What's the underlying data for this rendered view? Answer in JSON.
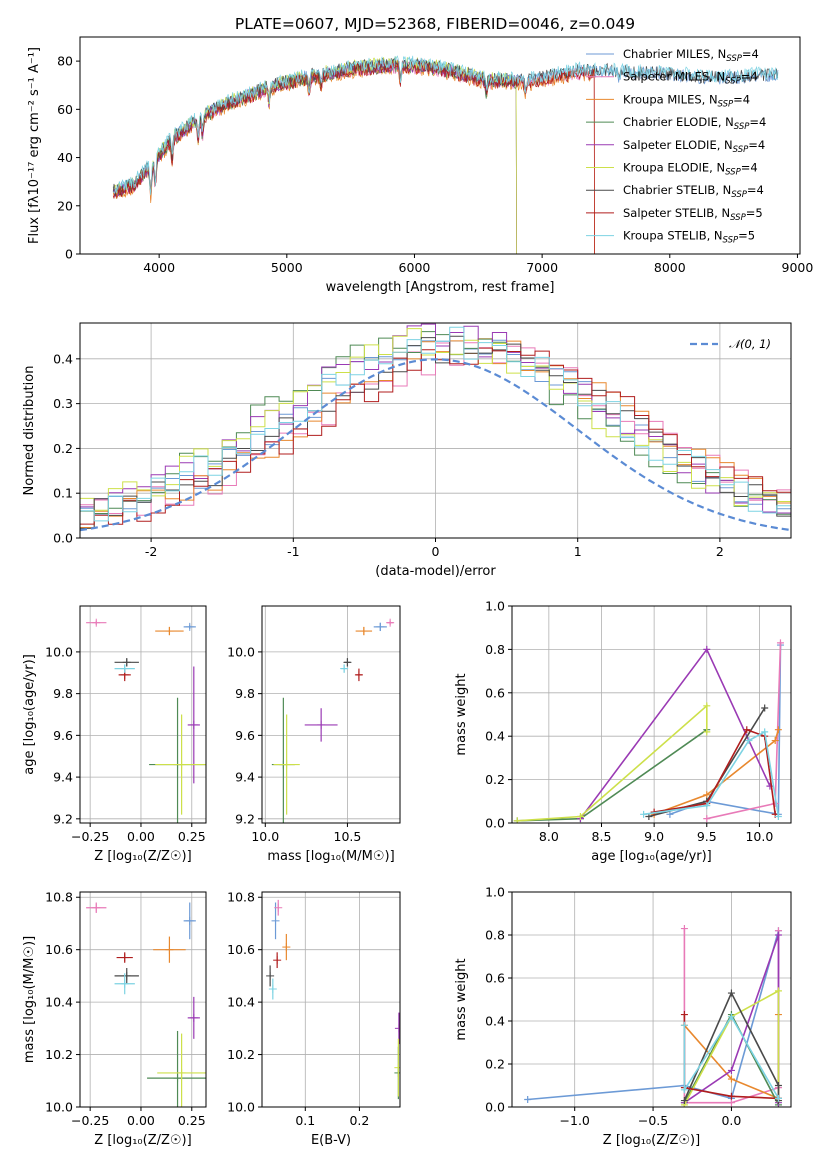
{
  "page": {
    "title": "PLATE=0607, MJD=52368, FIBERID=0046, z=0.049"
  },
  "colors": {
    "Chabrier MILES": "#6c9ad6",
    "Salpeter MILES": "#e87ab8",
    "Kroupa MILES": "#e8882e",
    "Chabrier ELODIE": "#4f8a55",
    "Salpeter ELODIE": "#9a3ab4",
    "Kroupa ELODIE": "#cde04a",
    "Chabrier STELIB": "#4a4a4a",
    "Salpeter STELIB": "#b01e1e",
    "Kroupa STELIB": "#7dd3e3"
  },
  "chart_data": [
    {
      "id": "spectrum",
      "type": "line",
      "xlabel": "wavelength [Angstrom, rest frame]",
      "ylabel": "Flux [fλ10⁻¹⁷ erg cm⁻² s⁻¹ A⁻¹]",
      "xlim": [
        3380,
        9020
      ],
      "ylim": [
        0,
        90
      ],
      "xticks": [
        4000,
        5000,
        6000,
        7000,
        8000,
        9000
      ],
      "yticks": [
        0,
        20,
        40,
        60,
        80
      ],
      "grid": false,
      "legend_position": "top-right",
      "continuum": {
        "x": [
          3640,
          3800,
          3950,
          4100,
          4300,
          4500,
          4700,
          4900,
          5100,
          5300,
          5500,
          5700,
          5900,
          6100,
          6300,
          6500,
          6700,
          6900,
          7100,
          7300,
          7500,
          7700,
          7900,
          8100,
          8300,
          8500,
          8700,
          8850
        ],
        "y": [
          26,
          29,
          38,
          48,
          56,
          62,
          66,
          70,
          73,
          75,
          77,
          78,
          79,
          78,
          76,
          73,
          72,
          72,
          74,
          76,
          76,
          75,
          75,
          74,
          73,
          73,
          74,
          74
        ]
      },
      "absorptions": [
        {
          "x": 3934,
          "depth": 12
        },
        {
          "x": 3969,
          "depth": 10
        },
        {
          "x": 4102,
          "depth": 8
        },
        {
          "x": 4305,
          "depth": 9
        },
        {
          "x": 4340,
          "depth": 7
        },
        {
          "x": 4861,
          "depth": 6
        },
        {
          "x": 5175,
          "depth": 6
        },
        {
          "x": 5270,
          "depth": 4
        },
        {
          "x": 5890,
          "depth": 7
        },
        {
          "x": 6563,
          "depth": 5
        },
        {
          "x": 6870,
          "depth": 4
        },
        {
          "x": 7600,
          "depth": 4
        }
      ],
      "series": [
        {
          "name": "Chabrier MILES",
          "label": [
            "Chabrier MILES, N",
            "SSP",
            "=4"
          ],
          "cutoff": null,
          "offset": 0.0
        },
        {
          "name": "Salpeter MILES",
          "label": [
            "Salpeter MILES, N",
            "SSP",
            "=4"
          ],
          "cutoff": 7410,
          "offset": -1.2
        },
        {
          "name": "Kroupa MILES",
          "label": [
            "Kroupa MILES, N",
            "SSP",
            "=4"
          ],
          "cutoff": 7410,
          "offset": -1.6
        },
        {
          "name": "Chabrier ELODIE",
          "label": [
            "Chabrier ELODIE, N",
            "SSP",
            "=4"
          ],
          "cutoff": 6800,
          "offset": -0.8
        },
        {
          "name": "Salpeter ELODIE",
          "label": [
            "Salpeter ELODIE, N",
            "SSP",
            "=4"
          ],
          "cutoff": 6800,
          "offset": -0.4
        },
        {
          "name": "Kroupa ELODIE",
          "label": [
            "Kroupa ELODIE, N",
            "SSP",
            "=4"
          ],
          "cutoff": 6800,
          "offset": 0.6
        },
        {
          "name": "Chabrier STELIB",
          "label": [
            "Chabrier STELIB, N",
            "SSP",
            "=4"
          ],
          "cutoff": null,
          "offset": 0.3
        },
        {
          "name": "Salpeter STELIB",
          "label": [
            "Salpeter STELIB, N",
            "SSP",
            "=5"
          ],
          "cutoff": 7410,
          "offset": -1.0
        },
        {
          "name": "Kroupa STELIB",
          "label": [
            "Kroupa STELIB, N",
            "SSP",
            "=5"
          ],
          "cutoff": null,
          "offset": 0.9
        }
      ]
    },
    {
      "id": "residuals",
      "type": "histogram",
      "xlabel": "(data-model)/error",
      "ylabel": "Normed distribution",
      "xlim": [
        -2.5,
        2.5
      ],
      "ylim": [
        0,
        0.48
      ],
      "xticks": [
        -2,
        -1,
        0,
        1,
        2
      ],
      "yticks": [
        0.0,
        0.1,
        0.2,
        0.3,
        0.4
      ],
      "grid": true,
      "bin_width": 0.1,
      "normal_curve": {
        "label": "𝒩(0, 1)",
        "mean": 0,
        "sigma": 1,
        "color": "#5b8bd4"
      },
      "series_shift": [
        0.15,
        0.3,
        0.25,
        -0.05,
        0.05,
        0.0,
        0.2,
        0.35,
        0.1
      ],
      "series_scale": [
        1.0,
        0.95,
        0.98,
        1.02,
        1.03,
        1.0,
        0.97,
        0.96,
        1.0
      ]
    },
    {
      "id": "age-vs-Z",
      "type": "scatter",
      "xlabel": "Z [log₁₀(Z/Z☉)]",
      "ylabel": "age  [log₁₀(age/yr)]",
      "xlim": [
        -0.3,
        0.32
      ],
      "ylim": [
        9.18,
        10.22
      ],
      "xticks": [
        -0.25,
        0.0,
        0.25
      ],
      "xtick_labels": [
        "−0.25",
        "0.00",
        "0.25"
      ],
      "yticks": [
        9.2,
        9.4,
        9.6,
        9.8,
        10.0
      ],
      "grid": true,
      "points": [
        {
          "series": "Chabrier MILES",
          "x": 0.24,
          "y": 10.12,
          "xerr": 0.03,
          "yerr": 0.01
        },
        {
          "series": "Salpeter MILES",
          "x": -0.22,
          "y": 10.14,
          "xerr": 0.05,
          "yerr": 0.01
        },
        {
          "series": "Kroupa MILES",
          "x": 0.14,
          "y": 10.1,
          "xerr": 0.07,
          "yerr": 0.02
        },
        {
          "series": "Chabrier ELODIE",
          "x": 0.18,
          "y": 9.46,
          "xerr": 0.14,
          "yerr": 0.32
        },
        {
          "series": "Salpeter ELODIE",
          "x": 0.26,
          "y": 9.65,
          "xerr": 0.03,
          "yerr": 0.28
        },
        {
          "series": "Kroupa ELODIE",
          "x": 0.2,
          "y": 9.46,
          "xerr": 0.13,
          "yerr": 0.24
        },
        {
          "series": "Chabrier STELIB",
          "x": -0.07,
          "y": 9.95,
          "xerr": 0.06,
          "yerr": 0.02
        },
        {
          "series": "Salpeter STELIB",
          "x": -0.08,
          "y": 9.89,
          "xerr": 0.03,
          "yerr": 0.03
        },
        {
          "series": "Kroupa STELIB",
          "x": -0.08,
          "y": 9.92,
          "xerr": 0.05,
          "yerr": 0.02
        }
      ]
    },
    {
      "id": "age-vs-mass",
      "type": "scatter",
      "xlabel": "mass [log₁₀(M/M☉)]",
      "ylabel": "",
      "xlim": [
        9.98,
        10.82
      ],
      "ylim": [
        9.18,
        10.22
      ],
      "xticks": [
        10.0,
        10.5
      ],
      "xtick_labels": [
        "10.0",
        "10.5"
      ],
      "yticks": [
        9.2,
        9.4,
        9.6,
        9.8,
        10.0
      ],
      "grid": true,
      "points": [
        {
          "series": "Chabrier MILES",
          "x": 10.7,
          "y": 10.12,
          "xerr": 0.04,
          "yerr": 0.02
        },
        {
          "series": "Salpeter MILES",
          "x": 10.76,
          "y": 10.14,
          "xerr": 0.02,
          "yerr": 0.01
        },
        {
          "series": "Kroupa MILES",
          "x": 10.6,
          "y": 10.1,
          "xerr": 0.05,
          "yerr": 0.02
        },
        {
          "series": "Chabrier ELODIE",
          "x": 10.11,
          "y": 9.46,
          "xerr": 0.07,
          "yerr": 0.32
        },
        {
          "series": "Salpeter ELODIE",
          "x": 10.34,
          "y": 9.65,
          "xerr": 0.1,
          "yerr": 0.08
        },
        {
          "series": "Kroupa ELODIE",
          "x": 10.13,
          "y": 9.46,
          "xerr": 0.08,
          "yerr": 0.24
        },
        {
          "series": "Chabrier STELIB",
          "x": 10.5,
          "y": 9.95,
          "xerr": 0.02,
          "yerr": 0.02
        },
        {
          "series": "Salpeter STELIB",
          "x": 10.57,
          "y": 9.89,
          "xerr": 0.02,
          "yerr": 0.03
        },
        {
          "series": "Kroupa STELIB",
          "x": 10.48,
          "y": 9.92,
          "xerr": 0.02,
          "yerr": 0.02
        }
      ]
    },
    {
      "id": "weight-vs-age",
      "type": "line",
      "xlabel": "age  [log₁₀(age/yr)]",
      "ylabel": "mass weight",
      "xlim": [
        7.65,
        10.3
      ],
      "ylim": [
        0,
        1
      ],
      "xticks": [
        8.0,
        8.5,
        9.0,
        9.5,
        10.0
      ],
      "xtick_labels": [
        "8.0",
        "8.5",
        "9.0",
        "9.5",
        "10.0"
      ],
      "yticks": [
        0.0,
        0.2,
        0.4,
        0.6,
        0.8,
        1.0
      ],
      "grid": true,
      "series": [
        {
          "name": "Chabrier MILES",
          "x": [
            9.15,
            9.5,
            10.18,
            10.2
          ],
          "y": [
            0.04,
            0.1,
            0.04,
            0.82
          ]
        },
        {
          "name": "Salpeter MILES",
          "x": [
            9.5,
            10.15,
            10.2
          ],
          "y": [
            0.02,
            0.09,
            0.83
          ]
        },
        {
          "name": "Kroupa MILES",
          "x": [
            9.0,
            9.5,
            10.15,
            10.18
          ],
          "y": [
            0.04,
            0.13,
            0.38,
            0.43
          ]
        },
        {
          "name": "Chabrier ELODIE",
          "x": [
            7.7,
            8.3,
            9.5
          ],
          "y": [
            0.01,
            0.02,
            0.43
          ]
        },
        {
          "name": "Salpeter ELODIE",
          "x": [
            8.3,
            9.5,
            10.1
          ],
          "y": [
            0.02,
            0.8,
            0.17
          ]
        },
        {
          "name": "Kroupa ELODIE",
          "x": [
            7.7,
            8.3,
            9.5,
            9.5
          ],
          "y": [
            0.01,
            0.03,
            0.54,
            0.42
          ]
        },
        {
          "name": "Chabrier STELIB",
          "x": [
            8.95,
            9.5,
            10.05
          ],
          "y": [
            0.03,
            0.1,
            0.53
          ]
        },
        {
          "name": "Salpeter STELIB",
          "x": [
            9.0,
            9.5,
            9.88,
            10.05,
            10.15
          ],
          "y": [
            0.05,
            0.09,
            0.43,
            0.4,
            0.04
          ]
        },
        {
          "name": "Kroupa STELIB",
          "x": [
            8.9,
            9.5,
            9.9,
            10.05,
            10.18
          ],
          "y": [
            0.04,
            0.08,
            0.38,
            0.42,
            0.03
          ]
        }
      ]
    },
    {
      "id": "mass-vs-Z",
      "type": "scatter",
      "xlabel": "Z [log₁₀(Z/Z☉)]",
      "ylabel": "mass [log₁₀(M/M☉)]",
      "xlim": [
        -0.3,
        0.32
      ],
      "ylim": [
        10.0,
        10.82
      ],
      "xticks": [
        -0.25,
        0.0,
        0.25
      ],
      "xtick_labels": [
        "−0.25",
        "0.00",
        "0.25"
      ],
      "yticks": [
        10.0,
        10.2,
        10.4,
        10.6,
        10.8
      ],
      "grid": true,
      "points": [
        {
          "series": "Chabrier MILES",
          "x": 0.24,
          "y": 10.71,
          "xerr": 0.03,
          "yerr": 0.07
        },
        {
          "series": "Salpeter MILES",
          "x": -0.22,
          "y": 10.76,
          "xerr": 0.05,
          "yerr": 0.02
        },
        {
          "series": "Kroupa MILES",
          "x": 0.14,
          "y": 10.6,
          "xerr": 0.08,
          "yerr": 0.05
        },
        {
          "series": "Chabrier ELODIE",
          "x": 0.18,
          "y": 10.11,
          "xerr": 0.15,
          "yerr": 0.18
        },
        {
          "series": "Salpeter ELODIE",
          "x": 0.26,
          "y": 10.34,
          "xerr": 0.03,
          "yerr": 0.08
        },
        {
          "series": "Kroupa ELODIE",
          "x": 0.2,
          "y": 10.13,
          "xerr": 0.12,
          "yerr": 0.15
        },
        {
          "series": "Chabrier STELIB",
          "x": -0.07,
          "y": 10.5,
          "xerr": 0.06,
          "yerr": 0.03
        },
        {
          "series": "Salpeter STELIB",
          "x": -0.08,
          "y": 10.57,
          "xerr": 0.04,
          "yerr": 0.02
        },
        {
          "series": "Kroupa STELIB",
          "x": -0.08,
          "y": 10.47,
          "xerr": 0.05,
          "yerr": 0.04
        }
      ]
    },
    {
      "id": "mass-vs-EBV",
      "type": "scatter",
      "xlabel": "E(B-V)",
      "ylabel": "",
      "xlim": [
        0.02,
        0.275
      ],
      "ylim": [
        10.0,
        10.82
      ],
      "xticks": [
        0.1,
        0.2
      ],
      "xtick_labels": [
        "0.1",
        "0.2"
      ],
      "yticks": [
        10.0,
        10.2,
        10.4,
        10.6,
        10.8
      ],
      "grid": true,
      "points": [
        {
          "series": "Chabrier MILES",
          "x": 0.045,
          "y": 10.71,
          "xerr": 0,
          "yerr": 0.07
        },
        {
          "series": "Salpeter MILES",
          "x": 0.05,
          "y": 10.76,
          "xerr": 0,
          "yerr": 0.03
        },
        {
          "series": "Kroupa MILES",
          "x": 0.065,
          "y": 10.61,
          "xerr": 0,
          "yerr": 0.05
        },
        {
          "series": "Chabrier ELODIE",
          "x": 0.272,
          "y": 10.13,
          "xerr": 0,
          "yerr": 0.1
        },
        {
          "series": "Salpeter ELODIE",
          "x": 0.273,
          "y": 10.3,
          "xerr": 0,
          "yerr": 0.06
        },
        {
          "series": "Kroupa ELODIE",
          "x": 0.272,
          "y": 10.15,
          "xerr": 0,
          "yerr": 0.11
        },
        {
          "series": "Chabrier STELIB",
          "x": 0.035,
          "y": 10.5,
          "xerr": 0,
          "yerr": 0.04
        },
        {
          "series": "Salpeter STELIB",
          "x": 0.048,
          "y": 10.56,
          "xerr": 0,
          "yerr": 0.03
        },
        {
          "series": "Kroupa STELIB",
          "x": 0.04,
          "y": 10.45,
          "xerr": 0,
          "yerr": 0.04
        }
      ]
    },
    {
      "id": "weight-vs-Z",
      "type": "line",
      "xlabel": "Z [log₁₀(Z/Z☉)]",
      "ylabel": "mass weight",
      "xlim": [
        -1.4,
        0.38
      ],
      "ylim": [
        0,
        1
      ],
      "xticks": [
        -1.0,
        -0.5,
        0.0
      ],
      "xtick_labels": [
        "−1.0",
        "−0.5",
        "0.0"
      ],
      "yticks": [
        0.0,
        0.2,
        0.4,
        0.6,
        0.8,
        1.0
      ],
      "grid": true,
      "series": [
        {
          "name": "Chabrier MILES",
          "x": [
            -1.3,
            -0.3,
            0.0,
            0.3,
            0.3
          ],
          "y": [
            0.035,
            0.1,
            0.04,
            0.82,
            0.04
          ]
        },
        {
          "name": "Salpeter MILES",
          "x": [
            -0.3,
            -0.3,
            0.0,
            0.3,
            0.3
          ],
          "y": [
            0.83,
            0.02,
            0.02,
            0.09,
            0.82
          ]
        },
        {
          "name": "Kroupa MILES",
          "x": [
            -0.3,
            0.0,
            0.3,
            0.3
          ],
          "y": [
            0.38,
            0.13,
            0.04,
            0.43
          ]
        },
        {
          "name": "Chabrier ELODIE",
          "x": [
            -0.3,
            0.0,
            0.3
          ],
          "y": [
            0.02,
            0.43,
            0.01
          ]
        },
        {
          "name": "Salpeter ELODIE",
          "x": [
            -0.3,
            0.0,
            0.3,
            0.3
          ],
          "y": [
            0.02,
            0.17,
            0.8,
            0.02
          ]
        },
        {
          "name": "Kroupa ELODIE",
          "x": [
            -0.3,
            0.0,
            0.3,
            0.3
          ],
          "y": [
            0.01,
            0.42,
            0.54,
            0.03
          ]
        },
        {
          "name": "Chabrier STELIB",
          "x": [
            -0.3,
            0.0,
            0.3,
            0.3
          ],
          "y": [
            0.03,
            0.53,
            0.1,
            0.03
          ]
        },
        {
          "name": "Salpeter STELIB",
          "x": [
            -0.3,
            -0.3,
            0.0,
            0.3
          ],
          "y": [
            0.43,
            0.09,
            0.05,
            0.04
          ]
        },
        {
          "name": "Kroupa STELIB",
          "x": [
            -0.3,
            -0.3,
            0.0,
            0.3
          ],
          "y": [
            0.38,
            0.08,
            0.42,
            0.04
          ]
        }
      ]
    }
  ]
}
